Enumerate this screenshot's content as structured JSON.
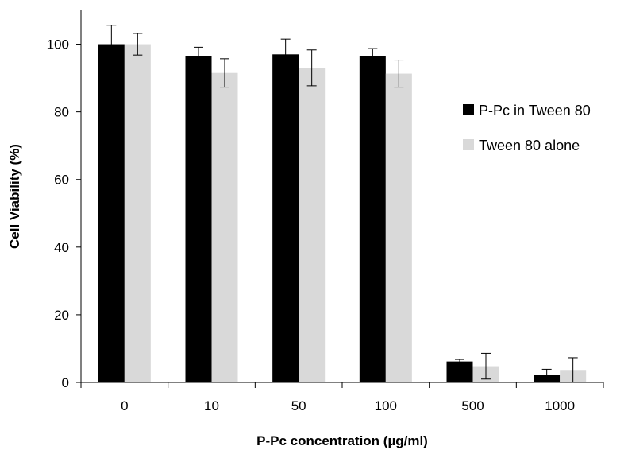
{
  "chart_data": {
    "type": "bar",
    "title": "",
    "xlabel": "P-Pc concentration (µg/ml)",
    "ylabel": "Cell Viability (%)",
    "categories": [
      "0",
      "10",
      "50",
      "100",
      "500",
      "1000"
    ],
    "ylim": [
      0,
      110
    ],
    "yticks": [
      "0",
      "20",
      "40",
      "60",
      "80",
      "100"
    ],
    "grid": false,
    "legend_position": "right",
    "series": [
      {
        "name": "P-Pc in Tween 80",
        "color": "#000000",
        "values": [
          100,
          96.5,
          97,
          96.5,
          6.2,
          2.3
        ],
        "errors": [
          5.6,
          2.6,
          4.5,
          2.2,
          0.6,
          1.6
        ]
      },
      {
        "name": "Tween 80 alone",
        "color": "#d9d9d9",
        "values": [
          100,
          91.5,
          93,
          91.3,
          4.8,
          3.7
        ],
        "errors": [
          3.2,
          4.2,
          5.3,
          4.0,
          3.8,
          3.6
        ]
      }
    ]
  }
}
